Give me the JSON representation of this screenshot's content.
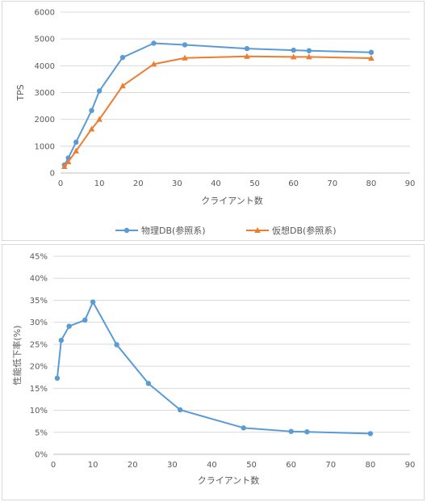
{
  "chart_data": [
    {
      "type": "line",
      "xlabel": "クライアント数",
      "ylabel": "TPS",
      "xlim": [
        0,
        90
      ],
      "ylim": [
        0,
        6000
      ],
      "xticks": [
        0,
        10,
        20,
        30,
        40,
        50,
        60,
        70,
        80,
        90
      ],
      "yticks": [
        0,
        1000,
        2000,
        3000,
        4000,
        5000,
        6000
      ],
      "grid": true,
      "legend": "bottom",
      "series": [
        {
          "name": "物理DB(参照系)",
          "color": "#5b9bd5",
          "marker": "circle",
          "x": [
            1,
            2,
            4,
            8,
            10,
            16,
            24,
            32,
            48,
            60,
            64,
            80
          ],
          "y": [
            300,
            560,
            1150,
            2330,
            3060,
            4310,
            4840,
            4780,
            4640,
            4580,
            4560,
            4500
          ]
        },
        {
          "name": "仮想DB(参照系)",
          "color": "#ed7d31",
          "marker": "triangle",
          "x": [
            1,
            2,
            4,
            8,
            10,
            16,
            24,
            32,
            48,
            60,
            64,
            80
          ],
          "y": [
            240,
            420,
            820,
            1640,
            2000,
            3250,
            4060,
            4290,
            4350,
            4330,
            4330,
            4280
          ]
        }
      ]
    },
    {
      "type": "line",
      "xlabel": "クライアント数",
      "ylabel": "性能低下率(%)",
      "xlim": [
        0,
        90
      ],
      "ylim": [
        0,
        45
      ],
      "xticks": [
        0,
        10,
        20,
        30,
        40,
        50,
        60,
        70,
        80,
        90
      ],
      "yticks": [
        0,
        5,
        10,
        15,
        20,
        25,
        30,
        35,
        40,
        45
      ],
      "ytick_suffix": "%",
      "grid": true,
      "series": [
        {
          "color": "#5b9bd5",
          "marker": "circle",
          "x": [
            1,
            2,
            4,
            8,
            10,
            16,
            24,
            32,
            48,
            60,
            64,
            80
          ],
          "y": [
            17.3,
            25.9,
            29.1,
            30.5,
            34.6,
            24.9,
            16.1,
            10.1,
            6.0,
            5.2,
            5.1,
            4.7
          ]
        }
      ]
    }
  ]
}
